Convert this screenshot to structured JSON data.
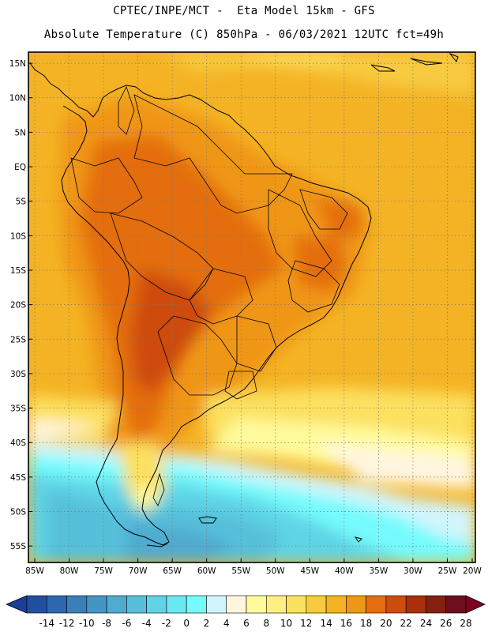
{
  "header": {
    "line1": "CPTEC/INPE/MCT -  Eta Model 15km - GFS",
    "line2": "Absolute Temperature (C) 850hPa - 06/03/2021 12UTC fct=49h"
  },
  "map": {
    "lat_labels": [
      "15N",
      "10N",
      "5N",
      "EQ",
      "5S",
      "10S",
      "15S",
      "20S",
      "25S",
      "30S",
      "35S",
      "40S",
      "45S",
      "50S",
      "55S"
    ],
    "lon_labels": [
      "85W",
      "80W",
      "75W",
      "70W",
      "65W",
      "60W",
      "55W",
      "50W",
      "45W",
      "40W",
      "35W",
      "30W",
      "25W",
      "20W"
    ],
    "gridlines": "dotted",
    "lon_range": [
      -85,
      -20
    ],
    "lat_range": [
      16.5,
      -57.5
    ]
  },
  "colorbar": {
    "labels": [
      "-14",
      "-12",
      "-10",
      "-8",
      "-6",
      "-4",
      "-2",
      "0",
      "2",
      "4",
      "6",
      "8",
      "10",
      "12",
      "14",
      "16",
      "18",
      "20",
      "22",
      "24",
      "26",
      "28"
    ],
    "colors": [
      "#1a3f94",
      "#2150a0",
      "#2e67ad",
      "#3b7fb9",
      "#4595c4",
      "#4fabd0",
      "#56c0da",
      "#5ed4e6",
      "#68e9f2",
      "#75fbfc",
      "#d2f5fd",
      "#fff6e0",
      "#fffb9c",
      "#fdf080",
      "#fce05f",
      "#f8ca3f",
      "#f4b324",
      "#f09617",
      "#e46e10",
      "#ce4c0c",
      "#ab2f0c",
      "#862010",
      "#6d0f1c",
      "#800020"
    ]
  }
}
